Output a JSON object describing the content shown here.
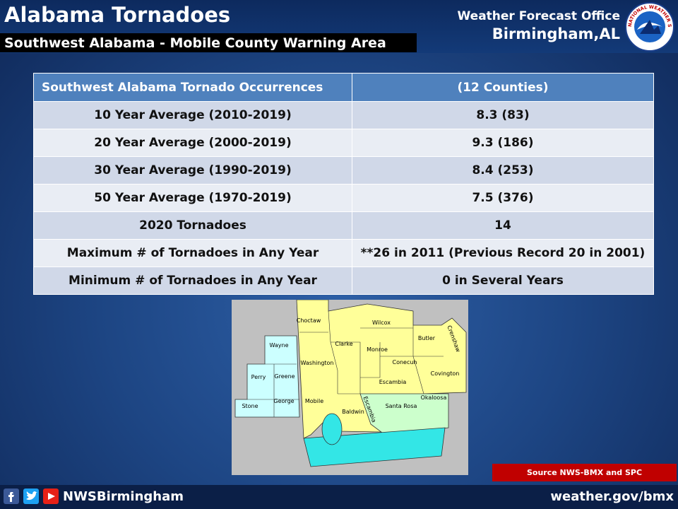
{
  "header": {
    "title": "Alabama Tornadoes",
    "subtitle": "Southwest Alabama - Mobile County Warning Area"
  },
  "office": {
    "line1": "Weather Forecast Office",
    "line2": "Birmingham,AL",
    "logo_text": "NATIONAL WEATHER SERVICE"
  },
  "table": {
    "header": [
      "Southwest Alabama Tornado Occurrences",
      "(12 Counties)"
    ],
    "rows": [
      [
        "10 Year Average (2010-2019)",
        "8.3  (83)"
      ],
      [
        "20 Year Average (2000-2019)",
        "9.3  (186)"
      ],
      [
        "30 Year Average (1990-2019)",
        "8.4 (253)"
      ],
      [
        "50 Year Average (1970-2019)",
        "7.5  (376)"
      ],
      [
        "2020 Tornadoes",
        "14"
      ],
      [
        "Maximum # of Tornadoes in Any Year",
        "**26 in 2011   (Previous Record 20 in 2001)"
      ],
      [
        "Minimum # of Tornadoes in Any Year",
        "0 in Several Years"
      ]
    ]
  },
  "map": {
    "counties": [
      "Choctaw",
      "Wilcox",
      "Butler",
      "Crenshaw",
      "Clarke",
      "Monroe",
      "Wayne",
      "Washington",
      "Conecuh",
      "Perry",
      "Greene",
      "Covington",
      "Escambia",
      "Stone",
      "George",
      "Mobile",
      "Baldwin",
      "Santa Rosa",
      "Okaloosa",
      "Escambia"
    ]
  },
  "source": "Source NWS-BMX and SPC",
  "footer": {
    "handle": "NWSBirmingham",
    "url": "weather.gov/bmx"
  }
}
